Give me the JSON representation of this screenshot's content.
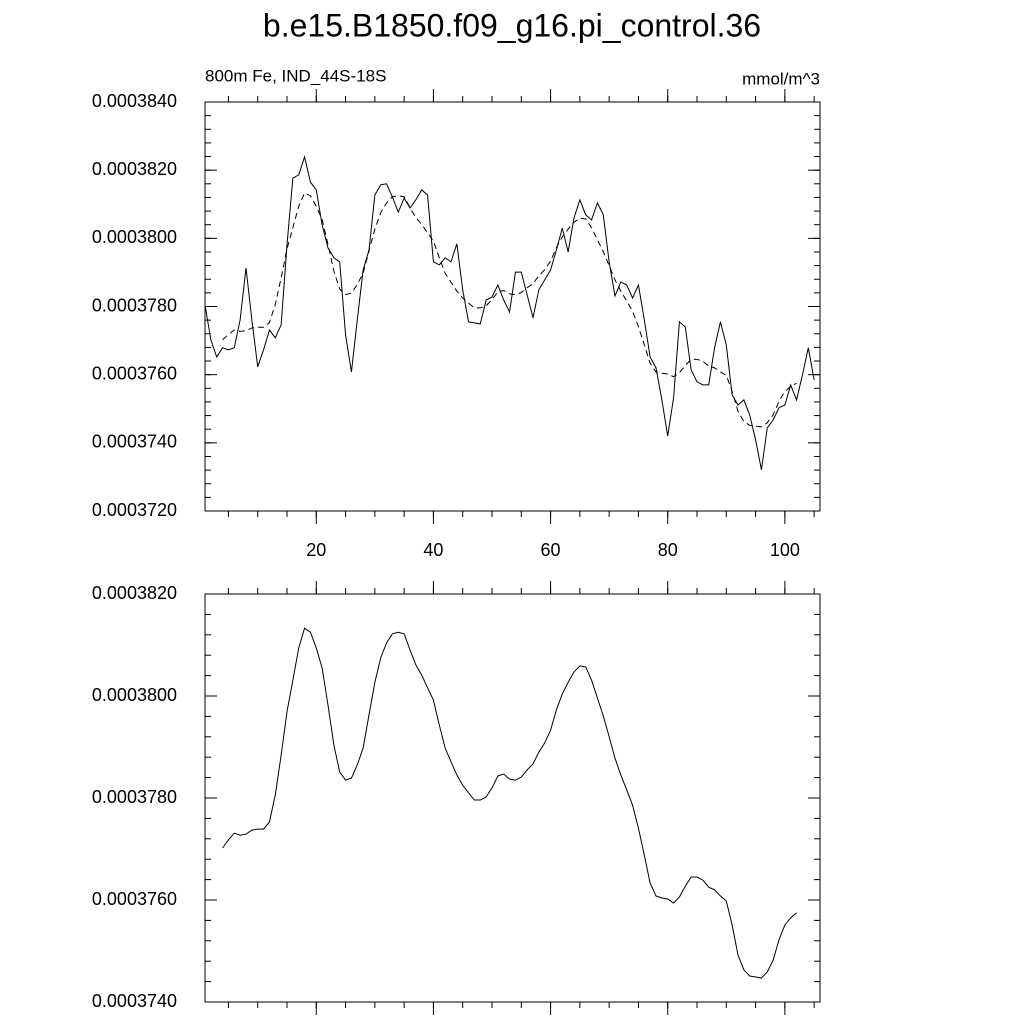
{
  "chart_data": [
    {
      "type": "line",
      "title": "b.e15.B1850.f09_g16.pi_control.36",
      "left_string": "800m Fe, IND_44S-18S",
      "right_string": "mmol/m^3",
      "xlim": [
        1,
        106
      ],
      "xticks": [
        20,
        40,
        60,
        80,
        100
      ],
      "xtick_labels": true,
      "ylim": [
        0.000372,
        0.000384
      ],
      "yticks": [
        {
          "value": 0.000372,
          "label": "0.0003720"
        },
        {
          "value": 0.000374,
          "label": "0.0003740"
        },
        {
          "value": 0.000376,
          "label": "0.0003760"
        },
        {
          "value": 0.000378,
          "label": "0.0003780"
        },
        {
          "value": 0.00038,
          "label": "0.0003800"
        },
        {
          "value": 0.000382,
          "label": "0.0003820"
        },
        {
          "value": 0.000384,
          "label": "0.0003840"
        }
      ],
      "series": [
        {
          "color": "#000000",
          "dash": false,
          "x": [
            1,
            2,
            3,
            4,
            5,
            6,
            7,
            8,
            9,
            10,
            11,
            12,
            13,
            14,
            15,
            16,
            17,
            18,
            19,
            20,
            21,
            22,
            23,
            24,
            25,
            26,
            27,
            28,
            29,
            30,
            31,
            32,
            33,
            34,
            35,
            36,
            37,
            38,
            39,
            40,
            41,
            42,
            43,
            44,
            45,
            46,
            47,
            48,
            49,
            50,
            51,
            52,
            53,
            54,
            55,
            56,
            57,
            58,
            59,
            60,
            61,
            62,
            63,
            64,
            65,
            66,
            67,
            68,
            69,
            70,
            71,
            72,
            73,
            74,
            75,
            76,
            77,
            78,
            79,
            80,
            81,
            82,
            83,
            84,
            85,
            86,
            87,
            88,
            89,
            90,
            91,
            92,
            93,
            94,
            95,
            96,
            97,
            98,
            99,
            100,
            101,
            102,
            103,
            104,
            105
          ],
          "values": [
            0.00037805,
            0.00037702,
            0.00037652,
            0.00037679,
            0.00037673,
            0.00037679,
            0.00037761,
            0.00037913,
            0.00037761,
            0.00037623,
            0.00037673,
            0.00037731,
            0.00037708,
            0.00037746,
            0.00037981,
            0.00038177,
            0.00038186,
            0.00038239,
            0.00038165,
            0.00038142,
            0.00038039,
            0.00037972,
            0.00037943,
            0.00037931,
            0.00037717,
            0.00037608,
            0.00037761,
            0.00037907,
            0.00037966,
            0.00038127,
            0.00038157,
            0.0003816,
            0.00038121,
            0.00038077,
            0.00038118,
            0.00038089,
            0.00038113,
            0.00038142,
            0.00038127,
            0.00037931,
            0.00037922,
            0.00037943,
            0.00037931,
            0.00037984,
            0.00037849,
            0.00037755,
            0.00037752,
            0.00037749,
            0.00037819,
            0.00037828,
            0.00037863,
            0.00037819,
            0.00037784,
            0.00037901,
            0.00037901,
            0.00037834,
            0.00037767,
            0.00037849,
            0.00037878,
            0.00037907,
            0.00037966,
            0.0003803,
            0.0003796,
            0.0003806,
            0.00038113,
            0.00038069,
            0.00038054,
            0.00038104,
            0.00038069,
            0.00037931,
            0.00037831,
            0.00037872,
            0.00037863,
            0.00037825,
            0.00037863,
            0.00037761,
            0.00037652,
            0.0003762,
            0.00037526,
            0.0003742,
            0.00037532,
            0.00037755,
            0.0003774,
            0.00037614,
            0.00037579,
            0.0003757,
            0.0003757,
            0.00037679,
            0.00037755,
            0.00037687,
            0.00037541,
            0.00037511,
            0.00037526,
            0.00037482,
            0.00037409,
            0.00037321,
            0.00037444,
            0.00037467,
            0.00037503,
            0.00037511,
            0.0003757,
            0.00037526,
            0.00037599,
            0.00037679,
            0.00037585
          ]
        },
        {
          "color": "#000000",
          "dash": true,
          "x": [
            4,
            5,
            6,
            7,
            8,
            9,
            10,
            11,
            12,
            13,
            14,
            15,
            16,
            17,
            18,
            19,
            20,
            21,
            22,
            23,
            24,
            25,
            26,
            27,
            28,
            29,
            30,
            31,
            32,
            33,
            34,
            35,
            36,
            37,
            38,
            39,
            40,
            41,
            42,
            43,
            44,
            45,
            46,
            47,
            48,
            49,
            50,
            51,
            52,
            53,
            54,
            55,
            56,
            57,
            58,
            59,
            60,
            61,
            62,
            63,
            64,
            65,
            66,
            67,
            68,
            69,
            70,
            71,
            72,
            73,
            74,
            75,
            76,
            77,
            78,
            79,
            80,
            81,
            82,
            83,
            84,
            85,
            86,
            87,
            88,
            89,
            90,
            91,
            92,
            93,
            94,
            95,
            96,
            97,
            98,
            99,
            100,
            101,
            102
          ],
          "values": [
            0.00037702,
            0.00037718,
            0.00037731,
            0.00037727,
            0.00037729,
            0.00037737,
            0.00037739,
            0.00037739,
            0.00037753,
            0.00037806,
            0.00037884,
            0.00037969,
            0.00038031,
            0.00038094,
            0.00038133,
            0.00038125,
            0.00038094,
            0.00038055,
            0.00037982,
            0.00037904,
            0.00037851,
            0.00037835,
            0.00037839,
            0.00037865,
            0.00037898,
            0.00037963,
            0.00038027,
            0.00038075,
            0.00038104,
            0.00038122,
            0.00038125,
            0.00038122,
            0.0003809,
            0.00038061,
            0.00038041,
            0.00038016,
            0.00037992,
            0.00037943,
            0.00037898,
            0.00037871,
            0.00037845,
            0.00037825,
            0.0003781,
            0.00037796,
            0.00037796,
            0.00037802,
            0.0003782,
            0.00037843,
            0.00037847,
            0.00037837,
            0.00037835,
            0.00037841,
            0.00037855,
            0.00037867,
            0.0003789,
            0.00037908,
            0.00037933,
            0.00037973,
            0.00038004,
            0.00038027,
            0.00038047,
            0.00038059,
            0.00038057,
            0.00038031,
            0.00037996,
            0.00037961,
            0.0003792,
            0.00037878,
            0.00037845,
            0.00037816,
            0.00037786,
            0.00037741,
            0.00037688,
            0.00037633,
            0.00037608,
            0.00037604,
            0.00037602,
            0.00037594,
            0.00037606,
            0.00037627,
            0.00037645,
            0.00037645,
            0.00037639,
            0.00037625,
            0.0003762,
            0.00037608,
            0.00037598,
            0.00037551,
            0.00037492,
            0.00037463,
            0.00037451,
            0.00037449,
            0.00037447,
            0.00037459,
            0.00037482,
            0.00037522,
            0.00037551,
            0.00037565,
            0.00037575
          ]
        }
      ]
    },
    {
      "type": "line",
      "xlim": [
        1,
        106
      ],
      "xticks": [
        20,
        40,
        60,
        80,
        100
      ],
      "xtick_labels": false,
      "ylim": [
        0.000374,
        0.000382
      ],
      "yticks": [
        {
          "value": 0.000374,
          "label": "0.0003740"
        },
        {
          "value": 0.000376,
          "label": "0.0003760"
        },
        {
          "value": 0.000378,
          "label": "0.0003780"
        },
        {
          "value": 0.00038,
          "label": "0.0003800"
        },
        {
          "value": 0.000382,
          "label": "0.0003820"
        }
      ],
      "series": [
        {
          "color": "#000000",
          "dash": false,
          "x": [
            4,
            5,
            6,
            7,
            8,
            9,
            10,
            11,
            12,
            13,
            14,
            15,
            16,
            17,
            18,
            19,
            20,
            21,
            22,
            23,
            24,
            25,
            26,
            27,
            28,
            29,
            30,
            31,
            32,
            33,
            34,
            35,
            36,
            37,
            38,
            39,
            40,
            41,
            42,
            43,
            44,
            45,
            46,
            47,
            48,
            49,
            50,
            51,
            52,
            53,
            54,
            55,
            56,
            57,
            58,
            59,
            60,
            61,
            62,
            63,
            64,
            65,
            66,
            67,
            68,
            69,
            70,
            71,
            72,
            73,
            74,
            75,
            76,
            77,
            78,
            79,
            80,
            81,
            82,
            83,
            84,
            85,
            86,
            87,
            88,
            89,
            90,
            91,
            92,
            93,
            94,
            95,
            96,
            97,
            98,
            99,
            100,
            101,
            102
          ],
          "values": [
            0.00037702,
            0.00037718,
            0.00037731,
            0.00037727,
            0.00037729,
            0.00037737,
            0.00037739,
            0.00037739,
            0.00037753,
            0.00037806,
            0.00037884,
            0.00037969,
            0.00038031,
            0.00038094,
            0.00038133,
            0.00038125,
            0.00038094,
            0.00038055,
            0.00037982,
            0.00037904,
            0.00037851,
            0.00037835,
            0.00037839,
            0.00037865,
            0.00037898,
            0.00037963,
            0.00038027,
            0.00038075,
            0.00038104,
            0.00038122,
            0.00038125,
            0.00038122,
            0.0003809,
            0.00038061,
            0.00038041,
            0.00038016,
            0.00037992,
            0.00037943,
            0.00037898,
            0.00037871,
            0.00037845,
            0.00037825,
            0.0003781,
            0.00037796,
            0.00037796,
            0.00037802,
            0.0003782,
            0.00037843,
            0.00037847,
            0.00037837,
            0.00037835,
            0.00037841,
            0.00037855,
            0.00037867,
            0.0003789,
            0.00037908,
            0.00037933,
            0.00037973,
            0.00038004,
            0.00038027,
            0.00038047,
            0.00038059,
            0.00038057,
            0.00038031,
            0.00037996,
            0.00037961,
            0.0003792,
            0.00037878,
            0.00037845,
            0.00037816,
            0.00037786,
            0.00037741,
            0.00037688,
            0.00037633,
            0.00037608,
            0.00037604,
            0.00037602,
            0.00037594,
            0.00037606,
            0.00037627,
            0.00037645,
            0.00037645,
            0.00037639,
            0.00037625,
            0.0003762,
            0.00037608,
            0.00037598,
            0.00037551,
            0.00037492,
            0.00037463,
            0.00037451,
            0.00037449,
            0.00037447,
            0.00037459,
            0.00037482,
            0.00037522,
            0.00037551,
            0.00037565,
            0.00037575
          ]
        }
      ]
    }
  ]
}
